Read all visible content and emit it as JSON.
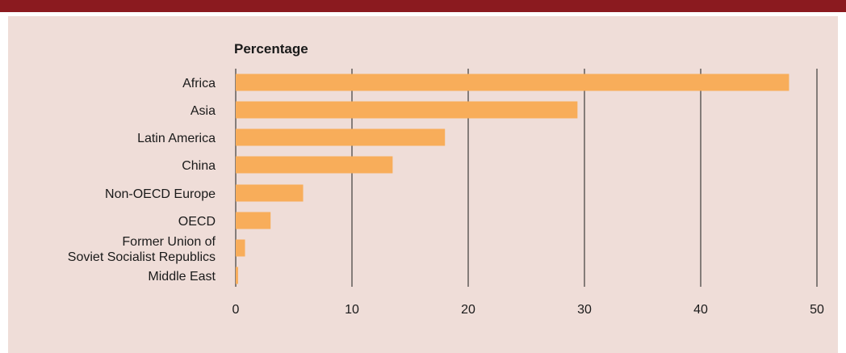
{
  "colors": {
    "header_bar": "#8b1a1f",
    "panel_background": "#efddd8",
    "bar": "#f8ad5a",
    "gridline": "#1a1a1a"
  },
  "chart_data": {
    "type": "bar",
    "orientation": "horizontal",
    "unit_label": "Percentage",
    "categories": [
      "Africa",
      "Asia",
      "Latin America",
      "China",
      "Non-OECD Europe",
      "OECD",
      [
        "Former Union of",
        "Soviet Socialist Republics"
      ],
      "Middle East"
    ],
    "values": [
      47.6,
      29.4,
      18.0,
      13.5,
      5.8,
      3.0,
      0.8,
      0.2
    ],
    "xlim": [
      0,
      50
    ],
    "xticks": [
      0,
      10,
      20,
      30,
      40,
      50
    ],
    "grid": "vertical"
  }
}
